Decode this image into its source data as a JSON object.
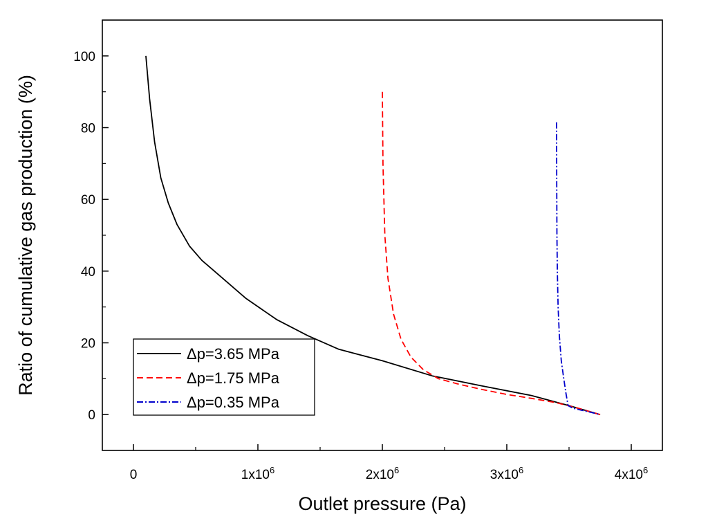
{
  "chart_data": {
    "type": "line",
    "title": "",
    "xlabel": "Outlet pressure (Pa)",
    "ylabel": "Ratio of cumulative gas production (%)",
    "xlim": [
      -250000,
      4250000
    ],
    "ylim": [
      -10,
      110
    ],
    "grid": false,
    "legend_position": "bottom-left",
    "x_ticks": [
      {
        "value": 0,
        "base": "0",
        "exp": ""
      },
      {
        "value": 1000000,
        "base": "1x10",
        "exp": "6"
      },
      {
        "value": 2000000,
        "base": "2x10",
        "exp": "6"
      },
      {
        "value": 3000000,
        "base": "3x10",
        "exp": "6"
      },
      {
        "value": 4000000,
        "base": "4x10",
        "exp": "6"
      }
    ],
    "y_ticks": [
      {
        "value": 0,
        "label": "0"
      },
      {
        "value": 20,
        "label": "20"
      },
      {
        "value": 40,
        "label": "40"
      },
      {
        "value": 60,
        "label": "60"
      },
      {
        "value": 80,
        "label": "80"
      },
      {
        "value": 100,
        "label": "100"
      }
    ],
    "series": [
      {
        "name": "Δp=3.65 MPa",
        "color": "#000000",
        "dash": "solid",
        "points": [
          [
            100000,
            100
          ],
          [
            130000,
            88
          ],
          [
            170000,
            76
          ],
          [
            220000,
            66
          ],
          [
            280000,
            59
          ],
          [
            350000,
            53
          ],
          [
            450000,
            47
          ],
          [
            550000,
            43
          ],
          [
            700000,
            38.5
          ],
          [
            900000,
            32.5
          ],
          [
            1150000,
            26.5
          ],
          [
            1400000,
            22
          ],
          [
            1650000,
            18.2
          ],
          [
            2000000,
            15
          ],
          [
            2400000,
            10.8
          ],
          [
            2800000,
            8
          ],
          [
            3200000,
            5.3
          ],
          [
            3500000,
            2.5
          ],
          [
            3750000,
            0
          ]
        ]
      },
      {
        "name": "Δp=1.75 MPa",
        "color": "#ff0000",
        "dash": "dashed",
        "points": [
          [
            2000000,
            90
          ],
          [
            2005000,
            70
          ],
          [
            2020000,
            50
          ],
          [
            2045000,
            38
          ],
          [
            2090000,
            28
          ],
          [
            2150000,
            21
          ],
          [
            2230000,
            16
          ],
          [
            2330000,
            12.5
          ],
          [
            2450000,
            10
          ],
          [
            2600000,
            8.6
          ],
          [
            2800000,
            7
          ],
          [
            3000000,
            5.6
          ],
          [
            3200000,
            4.5
          ],
          [
            3400000,
            3.3
          ],
          [
            3550000,
            2
          ],
          [
            3750000,
            0
          ]
        ]
      },
      {
        "name": "Δp=0.35 MPa",
        "color": "#0000cc",
        "dash": "dashdot",
        "points": [
          [
            3400000,
            81.5
          ],
          [
            3401000,
            65
          ],
          [
            3403000,
            50
          ],
          [
            3406000,
            40
          ],
          [
            3412000,
            30
          ],
          [
            3422000,
            22
          ],
          [
            3438000,
            15
          ],
          [
            3458000,
            10
          ],
          [
            3475000,
            6
          ],
          [
            3492000,
            2.5
          ],
          [
            3530000,
            1.8
          ],
          [
            3600000,
            1.2
          ],
          [
            3680000,
            0.6
          ],
          [
            3750000,
            0
          ]
        ]
      }
    ]
  }
}
